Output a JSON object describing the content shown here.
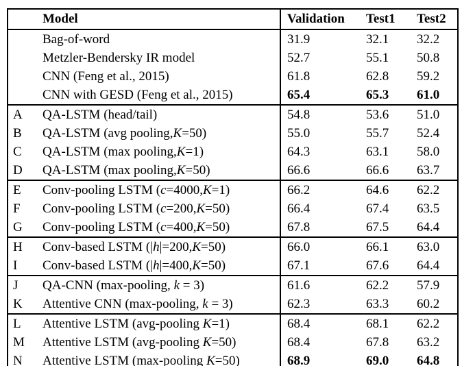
{
  "colors": {
    "background": "#ffffff",
    "border": "#000000",
    "text": "#000000"
  },
  "table": {
    "header": {
      "letter": "",
      "model": "Model",
      "validation": "Validation",
      "test1": "Test1",
      "test2": "Test2"
    },
    "groups": [
      {
        "rows": [
          {
            "letter": "",
            "model": [
              {
                "t": "Bag-of-word",
                "i": false
              }
            ],
            "validation": "31.9",
            "test1": "32.1",
            "test2": "32.2",
            "bold": false
          },
          {
            "letter": "",
            "model": [
              {
                "t": "Metzler-Bendersky IR model",
                "i": false
              }
            ],
            "validation": "52.7",
            "test1": "55.1",
            "test2": "50.8",
            "bold": false
          },
          {
            "letter": "",
            "model": [
              {
                "t": "CNN (Feng et al., 2015)",
                "i": false
              }
            ],
            "validation": "61.8",
            "test1": "62.8",
            "test2": "59.2",
            "bold": false
          },
          {
            "letter": "",
            "model": [
              {
                "t": "CNN with GESD (Feng et al., 2015)",
                "i": false
              }
            ],
            "validation": "65.4",
            "test1": "65.3",
            "test2": "61.0",
            "bold": true
          }
        ]
      },
      {
        "rows": [
          {
            "letter": "A",
            "model": [
              {
                "t": "QA-LSTM (head/tail)",
                "i": false
              }
            ],
            "validation": "54.8",
            "test1": "53.6",
            "test2": "51.0",
            "bold": false
          },
          {
            "letter": "B",
            "model": [
              {
                "t": "QA-LSTM (avg pooling,",
                "i": false
              },
              {
                "t": "K",
                "i": true
              },
              {
                "t": "=50)",
                "i": false
              }
            ],
            "validation": "55.0",
            "test1": "55.7",
            "test2": "52.4",
            "bold": false
          },
          {
            "letter": "C",
            "model": [
              {
                "t": "QA-LSTM (max pooling,",
                "i": false
              },
              {
                "t": "K",
                "i": true
              },
              {
                "t": "=1)",
                "i": false
              }
            ],
            "validation": "64.3",
            "test1": "63.1",
            "test2": "58.0",
            "bold": false
          },
          {
            "letter": "D",
            "model": [
              {
                "t": "QA-LSTM (max pooling,",
                "i": false
              },
              {
                "t": "K",
                "i": true
              },
              {
                "t": "=50)",
                "i": false
              }
            ],
            "validation": "66.6",
            "test1": "66.6",
            "test2": "63.7",
            "bold": false
          }
        ]
      },
      {
        "rows": [
          {
            "letter": "E",
            "model": [
              {
                "t": "Conv-pooling LSTM (",
                "i": false
              },
              {
                "t": "c",
                "i": true
              },
              {
                "t": "=4000,",
                "i": false
              },
              {
                "t": "K",
                "i": true
              },
              {
                "t": "=1)",
                "i": false
              }
            ],
            "validation": "66.2",
            "test1": "64.6",
            "test2": "62.2",
            "bold": false
          },
          {
            "letter": "F",
            "model": [
              {
                "t": "Conv-pooling LSTM (",
                "i": false
              },
              {
                "t": "c",
                "i": true
              },
              {
                "t": "=200,",
                "i": false
              },
              {
                "t": "K",
                "i": true
              },
              {
                "t": "=50)",
                "i": false
              }
            ],
            "validation": "66.4",
            "test1": "67.4",
            "test2": "63.5",
            "bold": false
          },
          {
            "letter": "G",
            "model": [
              {
                "t": "Conv-pooling LSTM (",
                "i": false
              },
              {
                "t": "c",
                "i": true
              },
              {
                "t": "=400,",
                "i": false
              },
              {
                "t": "K",
                "i": true
              },
              {
                "t": "=50)",
                "i": false
              }
            ],
            "validation": "67.8",
            "test1": "67.5",
            "test2": "64.4",
            "bold": false
          }
        ]
      },
      {
        "rows": [
          {
            "letter": "H",
            "model": [
              {
                "t": "Conv-based LSTM (|",
                "i": false
              },
              {
                "t": "h",
                "i": true
              },
              {
                "t": "|=200,",
                "i": false
              },
              {
                "t": "K",
                "i": true
              },
              {
                "t": "=50)",
                "i": false
              }
            ],
            "validation": "66.0",
            "test1": "66.1",
            "test2": "63.0",
            "bold": false
          },
          {
            "letter": "I",
            "model": [
              {
                "t": "Conv-based LSTM (|",
                "i": false
              },
              {
                "t": "h",
                "i": true
              },
              {
                "t": "|=400,",
                "i": false
              },
              {
                "t": "K",
                "i": true
              },
              {
                "t": "=50)",
                "i": false
              }
            ],
            "validation": "67.1",
            "test1": "67.6",
            "test2": "64.4",
            "bold": false
          }
        ]
      },
      {
        "rows": [
          {
            "letter": "J",
            "model": [
              {
                "t": "QA-CNN (max-pooling, ",
                "i": false
              },
              {
                "t": "k",
                "i": true
              },
              {
                "t": " = 3)",
                "i": false
              }
            ],
            "validation": "61.6",
            "test1": "62.2",
            "test2": "57.9",
            "bold": false
          },
          {
            "letter": "K",
            "model": [
              {
                "t": "Attentive CNN (max-pooling, ",
                "i": false
              },
              {
                "t": "k",
                "i": true
              },
              {
                "t": " = 3)",
                "i": false
              }
            ],
            "validation": "62.3",
            "test1": "63.3",
            "test2": "60.2",
            "bold": false
          }
        ]
      },
      {
        "rows": [
          {
            "letter": "L",
            "model": [
              {
                "t": "Attentive LSTM (avg-pooling ",
                "i": false
              },
              {
                "t": "K",
                "i": true
              },
              {
                "t": "=1)",
                "i": false
              }
            ],
            "validation": "68.4",
            "test1": "68.1",
            "test2": "62.2",
            "bold": false
          },
          {
            "letter": "M",
            "model": [
              {
                "t": "Attentive LSTM (avg-pooling ",
                "i": false
              },
              {
                "t": "K",
                "i": true
              },
              {
                "t": "=50)",
                "i": false
              }
            ],
            "validation": "68.4",
            "test1": "67.8",
            "test2": "63.2",
            "bold": false
          },
          {
            "letter": "N",
            "model": [
              {
                "t": "Attentive LSTM (max-pooling ",
                "i": false
              },
              {
                "t": "K",
                "i": true
              },
              {
                "t": "=50)",
                "i": false
              }
            ],
            "validation": "68.9",
            "test1": "69.0",
            "test2": "64.8",
            "bold": true
          }
        ]
      }
    ]
  }
}
